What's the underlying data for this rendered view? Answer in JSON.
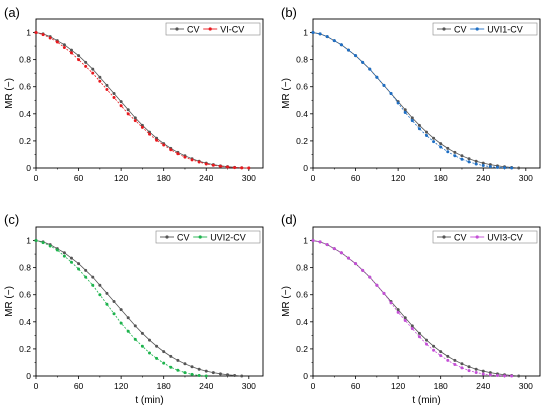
{
  "chart_data": [
    {
      "type": "line",
      "panel_label": "(a)",
      "xlabel": "",
      "ylabel": "MR (−)",
      "xlim": [
        0,
        320
      ],
      "ylim": [
        0,
        1.1
      ],
      "xticks": [
        "0",
        "60",
        "120",
        "180",
        "240",
        "300"
      ],
      "yticks": [
        "0",
        "0.2",
        "0.4",
        "0.6",
        "0.8",
        "1"
      ],
      "legend_position": "top-right",
      "series": [
        {
          "name": "CV",
          "color": "#555555",
          "x": [
            0,
            10,
            20,
            30,
            40,
            50,
            60,
            70,
            80,
            90,
            100,
            110,
            120,
            130,
            140,
            150,
            160,
            170,
            180,
            190,
            200,
            210,
            220,
            230,
            240,
            250,
            260,
            270,
            280,
            290,
            300
          ],
          "y": [
            1.0,
            0.99,
            0.97,
            0.94,
            0.91,
            0.87,
            0.83,
            0.78,
            0.73,
            0.67,
            0.61,
            0.55,
            0.49,
            0.43,
            0.37,
            0.315,
            0.265,
            0.22,
            0.18,
            0.145,
            0.115,
            0.09,
            0.068,
            0.05,
            0.036,
            0.025,
            0.016,
            0.01,
            0.005,
            0.002,
            0.0
          ]
        },
        {
          "name": "VI-CV",
          "color": "#e8191e",
          "x": [
            0,
            10,
            20,
            30,
            40,
            50,
            60,
            70,
            80,
            90,
            100,
            110,
            120,
            130,
            140,
            150,
            160,
            170,
            180,
            190,
            200,
            210,
            220,
            230,
            240,
            250,
            260,
            270,
            280,
            290,
            300
          ],
          "y": [
            1.0,
            0.985,
            0.96,
            0.93,
            0.89,
            0.85,
            0.8,
            0.75,
            0.7,
            0.64,
            0.58,
            0.52,
            0.46,
            0.4,
            0.35,
            0.3,
            0.25,
            0.205,
            0.17,
            0.135,
            0.105,
            0.08,
            0.06,
            0.044,
            0.03,
            0.02,
            0.013,
            0.007,
            0.003,
            0.001,
            0.0
          ]
        }
      ]
    },
    {
      "type": "line",
      "panel_label": "(b)",
      "xlabel": "",
      "ylabel": "MR (−)",
      "xlim": [
        0,
        320
      ],
      "ylim": [
        0,
        1.1
      ],
      "xticks": [
        "0",
        "60",
        "120",
        "180",
        "240",
        "300"
      ],
      "yticks": [
        "0",
        "0.2",
        "0.4",
        "0.6",
        "0.8",
        "1"
      ],
      "legend_position": "top-right",
      "series": [
        {
          "name": "CV",
          "color": "#555555",
          "x": [
            0,
            10,
            20,
            30,
            40,
            50,
            60,
            70,
            80,
            90,
            100,
            110,
            120,
            130,
            140,
            150,
            160,
            170,
            180,
            190,
            200,
            210,
            220,
            230,
            240,
            250,
            260,
            270,
            280,
            290
          ],
          "y": [
            1.0,
            0.99,
            0.97,
            0.94,
            0.91,
            0.87,
            0.83,
            0.78,
            0.73,
            0.67,
            0.61,
            0.55,
            0.49,
            0.43,
            0.37,
            0.315,
            0.265,
            0.22,
            0.18,
            0.145,
            0.115,
            0.09,
            0.068,
            0.05,
            0.036,
            0.025,
            0.016,
            0.009,
            0.004,
            0.0
          ]
        },
        {
          "name": "UVI1-CV",
          "color": "#1f6fc4",
          "x": [
            0,
            10,
            20,
            30,
            40,
            50,
            60,
            70,
            80,
            90,
            100,
            110,
            120,
            130,
            140,
            150,
            160,
            170,
            180,
            190,
            200,
            210,
            220,
            230,
            240,
            250,
            260,
            270,
            280
          ],
          "y": [
            1.0,
            0.99,
            0.97,
            0.94,
            0.91,
            0.87,
            0.83,
            0.78,
            0.73,
            0.67,
            0.61,
            0.55,
            0.48,
            0.41,
            0.35,
            0.29,
            0.24,
            0.195,
            0.155,
            0.12,
            0.09,
            0.065,
            0.045,
            0.03,
            0.018,
            0.01,
            0.005,
            0.002,
            0.0
          ]
        }
      ]
    },
    {
      "type": "line",
      "panel_label": "(c)",
      "xlabel": "t (min)",
      "ylabel": "MR (−)",
      "xlim": [
        0,
        320
      ],
      "ylim": [
        0,
        1.1
      ],
      "xticks": [
        "0",
        "60",
        "120",
        "180",
        "240",
        "300"
      ],
      "yticks": [
        "0",
        "0.2",
        "0.4",
        "0.6",
        "0.8",
        "1"
      ],
      "legend_position": "top-right",
      "series": [
        {
          "name": "CV",
          "color": "#555555",
          "x": [
            0,
            10,
            20,
            30,
            40,
            50,
            60,
            70,
            80,
            90,
            100,
            110,
            120,
            130,
            140,
            150,
            160,
            170,
            180,
            190,
            200,
            210,
            220,
            230,
            240,
            250,
            260,
            270,
            280,
            290
          ],
          "y": [
            1.0,
            0.99,
            0.97,
            0.94,
            0.91,
            0.87,
            0.83,
            0.78,
            0.73,
            0.67,
            0.61,
            0.55,
            0.49,
            0.43,
            0.37,
            0.315,
            0.265,
            0.22,
            0.18,
            0.145,
            0.115,
            0.09,
            0.068,
            0.05,
            0.036,
            0.025,
            0.016,
            0.009,
            0.004,
            0.0
          ]
        },
        {
          "name": "UVI2-CV",
          "color": "#1db34d",
          "x": [
            0,
            10,
            20,
            30,
            40,
            50,
            60,
            70,
            80,
            90,
            100,
            110,
            120,
            130,
            140,
            150,
            160,
            170,
            180,
            190,
            200,
            210,
            220,
            230,
            240
          ],
          "y": [
            1.0,
            0.985,
            0.96,
            0.93,
            0.885,
            0.84,
            0.79,
            0.73,
            0.67,
            0.6,
            0.53,
            0.46,
            0.39,
            0.33,
            0.27,
            0.22,
            0.17,
            0.13,
            0.095,
            0.065,
            0.042,
            0.025,
            0.012,
            0.004,
            0.0
          ]
        }
      ]
    },
    {
      "type": "line",
      "panel_label": "(d)",
      "xlabel": "t (min)",
      "ylabel": "MR (−)",
      "xlim": [
        0,
        320
      ],
      "ylim": [
        0,
        1.1
      ],
      "xticks": [
        "0",
        "60",
        "120",
        "180",
        "240",
        "300"
      ],
      "yticks": [
        "0",
        "0.2",
        "0.4",
        "0.6",
        "0.8",
        "1"
      ],
      "legend_position": "top-right",
      "series": [
        {
          "name": "CV",
          "color": "#555555",
          "x": [
            0,
            10,
            20,
            30,
            40,
            50,
            60,
            70,
            80,
            90,
            100,
            110,
            120,
            130,
            140,
            150,
            160,
            170,
            180,
            190,
            200,
            210,
            220,
            230,
            240,
            250,
            260,
            270,
            280,
            290
          ],
          "y": [
            1.0,
            0.99,
            0.97,
            0.94,
            0.91,
            0.87,
            0.83,
            0.78,
            0.73,
            0.67,
            0.61,
            0.55,
            0.49,
            0.43,
            0.37,
            0.315,
            0.265,
            0.22,
            0.18,
            0.145,
            0.115,
            0.09,
            0.068,
            0.05,
            0.036,
            0.025,
            0.016,
            0.009,
            0.004,
            0.0
          ]
        },
        {
          "name": "UVI3-CV",
          "color": "#c44fd6",
          "x": [
            0,
            10,
            20,
            30,
            40,
            50,
            60,
            70,
            80,
            90,
            100,
            110,
            120,
            130,
            140,
            150,
            160,
            170,
            180,
            190,
            200,
            210,
            220,
            230,
            240,
            250,
            260,
            270,
            280
          ],
          "y": [
            1.0,
            0.99,
            0.97,
            0.94,
            0.91,
            0.87,
            0.83,
            0.78,
            0.73,
            0.67,
            0.61,
            0.54,
            0.47,
            0.41,
            0.35,
            0.29,
            0.235,
            0.19,
            0.15,
            0.115,
            0.085,
            0.06,
            0.04,
            0.026,
            0.015,
            0.008,
            0.004,
            0.001,
            0.0
          ]
        }
      ]
    }
  ]
}
